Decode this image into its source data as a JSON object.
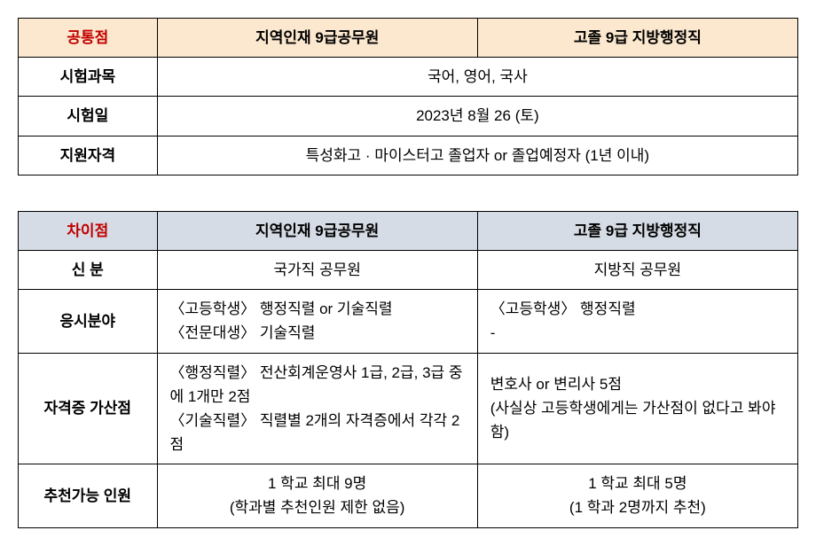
{
  "table1": {
    "header_corner": "공통점",
    "header_col1": "지역인재 9급공무원",
    "header_col2": "고졸 9급 지방행정직",
    "rows": [
      {
        "label": "시험과목",
        "merged_value": "국어, 영어, 국사"
      },
      {
        "label": "시험일",
        "merged_value": "2023년 8월 26 (토)"
      },
      {
        "label": "지원자격",
        "merged_value": "특성화고 · 마이스터고 졸업자 or 졸업예정자 (1년 이내)"
      }
    ]
  },
  "table2": {
    "header_corner": "차이점",
    "header_col1": "지역인재 9급공무원",
    "header_col2": "고졸 9급 지방행정직",
    "rows": [
      {
        "label": "신 분",
        "col1": "국가직 공무원",
        "col2": "지방직 공무원"
      },
      {
        "label": "응시분야",
        "col1": "〈고등학생〉 행정직렬 or 기술직렬\n〈전문대생〉 기술직렬",
        "col2": "〈고등학생〉 행정직렬\n-"
      },
      {
        "label": "자격증 가산점",
        "col1": "〈행정직렬〉 전산회계운영사 1급, 2급, 3급 중에 1개만 2점\n〈기술직렬〉 직렬별 2개의 자격증에서 각각 2점",
        "col2": "변호사 or 변리사 5점\n(사실상 고등학생에게는 가산점이 없다고 봐야함)"
      },
      {
        "label": "추천가능 인원",
        "col1": "1 학교 최대 9명\n(학과별 추천인원 제한 없음)",
        "col2": "1 학교 최대 5명\n(1 학과 2명까지 추천)"
      }
    ]
  },
  "colors": {
    "table1_header_bg": "#fce8cf",
    "table2_header_bg": "#d6dce5",
    "corner_text": "#c00000",
    "border": "#000000",
    "background": "#ffffff"
  }
}
